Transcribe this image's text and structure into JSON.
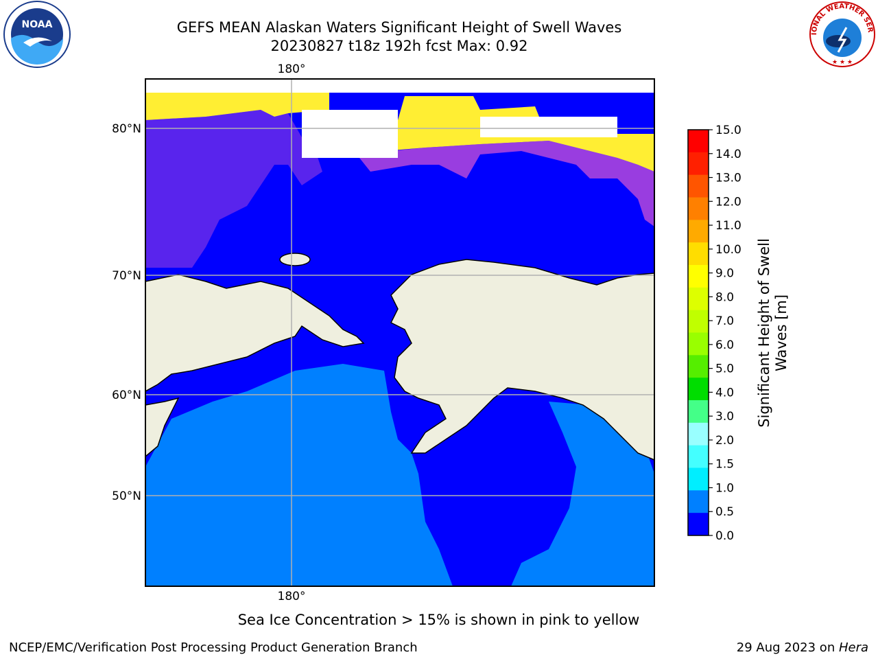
{
  "title": {
    "line1": "GEFS MEAN Alaskan Waters Significant Height of Swell Waves",
    "line2": "20230827 t18z 192h fcst   Max: 0.92"
  },
  "map": {
    "top_lon_label": "180°",
    "bottom_lon_label": "180°",
    "lat_labels": [
      "80°N",
      "70°N",
      "60°N",
      "50°N"
    ],
    "colors": {
      "land": "#efefdf",
      "swell_0_0_5": "#0000ff",
      "swell_0_5_1_0": "#0080ff",
      "ice_pink": "#ff66cc",
      "ice_yellow": "#ffee33",
      "grid": "#b0b0b0"
    }
  },
  "colorbar": {
    "title_line1": "Significant Height of Swell",
    "title_line2": "Waves [m]",
    "ticks": [
      "15.0",
      "14.0",
      "13.0",
      "12.0",
      "11.0",
      "10.0",
      "9.0",
      "8.0",
      "7.0",
      "6.0",
      "5.0",
      "4.0",
      "3.0",
      "2.0",
      "1.5",
      "1.0",
      "0.5",
      "0.0"
    ],
    "colors": [
      "#ff0000",
      "#ff2000",
      "#ff5500",
      "#ff8000",
      "#ffaa00",
      "#ffdd00",
      "#ffff00",
      "#ddff00",
      "#c0ff00",
      "#99ff00",
      "#55ee00",
      "#00dd00",
      "#44ff88",
      "#99ffff",
      "#44ffff",
      "#00eeff",
      "#0080ff",
      "#0000ff"
    ]
  },
  "notes": {
    "ice": "Sea Ice Concentration > 15% is shown in pink to yellow",
    "footer_left": "NCEP/EMC/Verification Post Processing Product Generation Branch",
    "footer_right_prefix": "29 Aug 2023 on ",
    "footer_right_host": "Hera"
  },
  "logos": {
    "noaa_text": "NOAA",
    "nws_text": "NATIONAL WEATHER SERVICE"
  }
}
